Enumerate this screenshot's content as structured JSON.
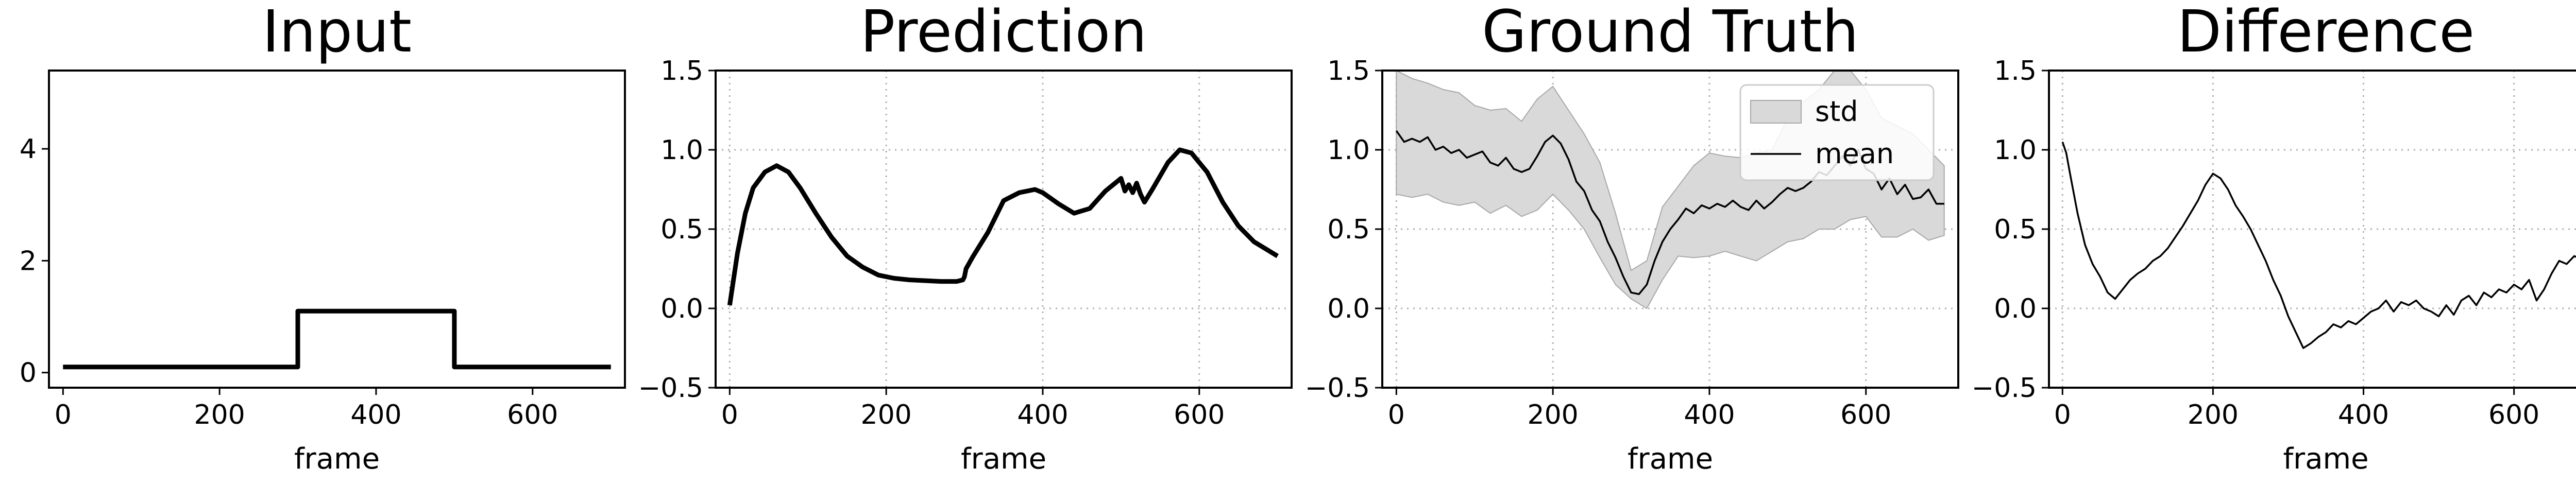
{
  "chart_data": [
    {
      "type": "line",
      "title": "Input",
      "xlabel": "frame",
      "ylabel": "",
      "xlim": [
        -18,
        718
      ],
      "ylim": [
        -0.27,
        5.4
      ],
      "xticks": [
        0,
        200,
        400,
        600
      ],
      "yticks": [
        0,
        2,
        4
      ],
      "ytick_labels": [
        "0",
        "2",
        "4"
      ],
      "grid": false,
      "series": [
        {
          "color": "#000000",
          "x": [
            0,
            300,
            300,
            500,
            500,
            700
          ],
          "y": [
            0.1,
            0.1,
            1.1,
            1.1,
            0.1,
            0.1
          ]
        }
      ]
    },
    {
      "type": "line",
      "title": "Prediction",
      "xlabel": "frame",
      "ylabel": "",
      "xlim": [
        -18,
        718
      ],
      "ylim": [
        -0.5,
        1.5
      ],
      "xticks": [
        0,
        200,
        400,
        600
      ],
      "yticks": [
        -0.5,
        0.0,
        0.5,
        1.0,
        1.5
      ],
      "ytick_labels": [
        "−0.5",
        "0.0",
        "0.5",
        "1.0",
        "1.5"
      ],
      "grid": true,
      "series": [
        {
          "color": "#000000",
          "x": [
            0,
            10,
            20,
            30,
            45,
            60,
            75,
            90,
            110,
            130,
            150,
            170,
            190,
            210,
            230,
            250,
            270,
            290,
            298,
            300,
            302,
            310,
            330,
            350,
            370,
            390,
            400,
            420,
            440,
            460,
            480,
            495,
            500,
            505,
            510,
            515,
            520,
            525,
            530,
            540,
            560,
            575,
            590,
            610,
            630,
            650,
            670,
            690,
            700
          ],
          "y": [
            0.02,
            0.35,
            0.6,
            0.76,
            0.86,
            0.9,
            0.86,
            0.76,
            0.6,
            0.45,
            0.33,
            0.26,
            0.21,
            0.19,
            0.18,
            0.175,
            0.17,
            0.17,
            0.18,
            0.2,
            0.25,
            0.32,
            0.48,
            0.68,
            0.73,
            0.75,
            0.73,
            0.66,
            0.6,
            0.63,
            0.74,
            0.8,
            0.82,
            0.74,
            0.78,
            0.73,
            0.79,
            0.72,
            0.67,
            0.75,
            0.92,
            1.0,
            0.98,
            0.86,
            0.67,
            0.52,
            0.42,
            0.36,
            0.33
          ]
        }
      ]
    },
    {
      "type": "area",
      "title": "Ground Truth",
      "xlabel": "frame",
      "ylabel": "",
      "xlim": [
        -18,
        718
      ],
      "ylim": [
        -0.5,
        1.5
      ],
      "xticks": [
        0,
        200,
        400,
        600
      ],
      "yticks": [
        -0.5,
        0.0,
        0.5,
        1.0,
        1.5
      ],
      "ytick_labels": [
        "−0.5",
        "0.0",
        "0.5",
        "1.0",
        "1.5"
      ],
      "grid": true,
      "legend": {
        "position": "upper-right",
        "entries": [
          "std",
          "mean"
        ]
      },
      "series": [
        {
          "name": "mean",
          "color": "#000000",
          "x": [
            0,
            10,
            20,
            30,
            40,
            50,
            60,
            70,
            80,
            90,
            100,
            110,
            120,
            130,
            140,
            150,
            160,
            170,
            180,
            190,
            200,
            210,
            220,
            230,
            240,
            250,
            260,
            270,
            280,
            290,
            300,
            310,
            320,
            330,
            340,
            350,
            360,
            370,
            380,
            390,
            400,
            410,
            420,
            430,
            440,
            450,
            460,
            470,
            480,
            490,
            500,
            510,
            520,
            530,
            540,
            550,
            560,
            570,
            580,
            590,
            600,
            610,
            620,
            630,
            640,
            650,
            660,
            670,
            680,
            690,
            700
          ],
          "y": [
            1.12,
            1.05,
            1.07,
            1.05,
            1.08,
            1.0,
            1.02,
            0.98,
            1.0,
            0.95,
            0.97,
            0.99,
            0.92,
            0.9,
            0.95,
            0.88,
            0.86,
            0.88,
            0.96,
            1.05,
            1.09,
            1.04,
            0.94,
            0.8,
            0.74,
            0.62,
            0.55,
            0.42,
            0.32,
            0.2,
            0.1,
            0.09,
            0.15,
            0.3,
            0.42,
            0.5,
            0.56,
            0.63,
            0.6,
            0.65,
            0.63,
            0.66,
            0.64,
            0.68,
            0.64,
            0.62,
            0.68,
            0.63,
            0.67,
            0.72,
            0.76,
            0.74,
            0.76,
            0.8,
            0.86,
            0.84,
            0.9,
            0.96,
            0.9,
            1.0,
            0.88,
            0.85,
            0.75,
            0.82,
            0.72,
            0.78,
            0.69,
            0.7,
            0.75,
            0.66,
            0.66
          ]
        },
        {
          "name": "std",
          "color": "#d9d9d9",
          "x": [
            0,
            20,
            40,
            60,
            80,
            100,
            120,
            140,
            160,
            180,
            200,
            220,
            240,
            260,
            280,
            300,
            320,
            340,
            360,
            380,
            400,
            420,
            440,
            460,
            480,
            500,
            520,
            540,
            560,
            580,
            600,
            620,
            640,
            660,
            680,
            700
          ],
          "lower": [
            0.72,
            0.7,
            0.72,
            0.67,
            0.65,
            0.67,
            0.6,
            0.65,
            0.58,
            0.62,
            0.72,
            0.62,
            0.5,
            0.32,
            0.15,
            0.06,
            0.0,
            0.18,
            0.33,
            0.32,
            0.33,
            0.36,
            0.33,
            0.3,
            0.36,
            0.42,
            0.44,
            0.5,
            0.5,
            0.56,
            0.58,
            0.45,
            0.45,
            0.5,
            0.43,
            0.46
          ],
          "upper": [
            1.5,
            1.45,
            1.42,
            1.38,
            1.36,
            1.28,
            1.25,
            1.26,
            1.18,
            1.32,
            1.4,
            1.25,
            1.1,
            0.92,
            0.6,
            0.24,
            0.3,
            0.64,
            0.77,
            0.9,
            0.98,
            0.96,
            0.95,
            0.98,
            1.0,
            1.2,
            1.3,
            1.38,
            1.5,
            1.5,
            1.38,
            1.2,
            1.15,
            1.1,
            1.0,
            0.9
          ]
        }
      ]
    },
    {
      "type": "line",
      "title": "Difference",
      "xlabel": "frame",
      "ylabel": "",
      "xlim": [
        -18,
        718
      ],
      "ylim": [
        -0.5,
        1.5
      ],
      "xticks": [
        0,
        200,
        400,
        600
      ],
      "yticks": [
        -0.5,
        0.0,
        0.5,
        1.0,
        1.5
      ],
      "ytick_labels": [
        "−0.5",
        "0.0",
        "0.5",
        "1.0",
        "1.5"
      ],
      "grid": true,
      "series": [
        {
          "color": "#000000",
          "x": [
            0,
            5,
            10,
            20,
            30,
            40,
            50,
            60,
            70,
            80,
            90,
            100,
            110,
            120,
            130,
            140,
            150,
            160,
            170,
            180,
            190,
            200,
            210,
            220,
            230,
            240,
            250,
            260,
            270,
            280,
            290,
            300,
            310,
            320,
            330,
            340,
            350,
            360,
            370,
            380,
            390,
            400,
            410,
            420,
            430,
            440,
            450,
            460,
            470,
            480,
            490,
            500,
            510,
            520,
            530,
            540,
            550,
            560,
            570,
            580,
            590,
            600,
            610,
            620,
            630,
            640,
            650,
            660,
            670,
            680,
            690,
            700
          ],
          "y": [
            1.05,
            0.98,
            0.85,
            0.6,
            0.4,
            0.28,
            0.2,
            0.1,
            0.06,
            0.12,
            0.18,
            0.22,
            0.25,
            0.3,
            0.33,
            0.38,
            0.45,
            0.52,
            0.6,
            0.68,
            0.78,
            0.85,
            0.82,
            0.75,
            0.65,
            0.58,
            0.5,
            0.4,
            0.3,
            0.18,
            0.08,
            -0.05,
            -0.15,
            -0.25,
            -0.22,
            -0.18,
            -0.15,
            -0.1,
            -0.12,
            -0.08,
            -0.1,
            -0.06,
            -0.02,
            0.0,
            0.05,
            -0.02,
            0.04,
            0.02,
            0.05,
            0.0,
            -0.02,
            -0.05,
            0.02,
            -0.04,
            0.05,
            0.08,
            0.02,
            0.1,
            0.07,
            0.12,
            0.1,
            0.15,
            0.12,
            0.18,
            0.05,
            0.12,
            0.22,
            0.3,
            0.28,
            0.33,
            0.31,
            0.34
          ]
        }
      ]
    }
  ]
}
